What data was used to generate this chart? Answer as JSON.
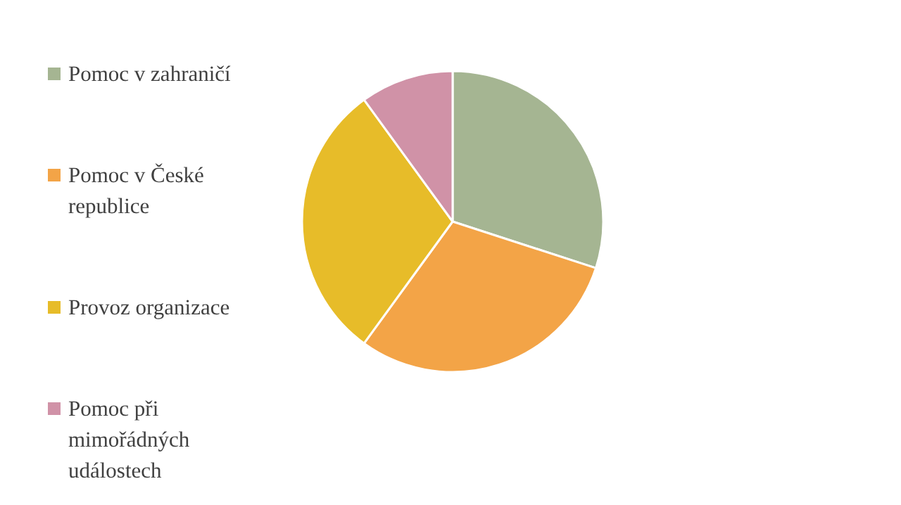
{
  "chart_data": {
    "type": "pie",
    "categories": [
      "Pomoc v zahraničí",
      "Pomoc v České republice",
      "Provoz organizace",
      "Pomoc při mimořádných událostech"
    ],
    "values": [
      30,
      30,
      30,
      10
    ],
    "colors": [
      "#a5b592",
      "#f3a447",
      "#e7bc29",
      "#d092a7"
    ],
    "legend": "left"
  }
}
